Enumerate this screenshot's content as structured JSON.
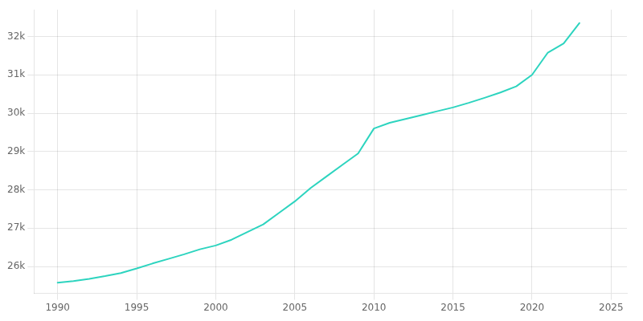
{
  "chart_data": {
    "type": "line",
    "x": [
      1990,
      1991,
      1992,
      1993,
      1994,
      1995,
      1996,
      1997,
      1998,
      1999,
      2000,
      2001,
      2002,
      2003,
      2004,
      2005,
      2006,
      2007,
      2008,
      2009,
      2010,
      2011,
      2012,
      2013,
      2014,
      2015,
      2016,
      2017,
      2018,
      2019,
      2020,
      2021,
      2022,
      2023
    ],
    "values": [
      25580,
      25620,
      25680,
      25750,
      25830,
      25950,
      26080,
      26200,
      26320,
      26450,
      26550,
      26700,
      26900,
      27100,
      27400,
      27700,
      28050,
      28350,
      28650,
      28950,
      29600,
      29750,
      29850,
      29950,
      30050,
      30150,
      30270,
      30400,
      30540,
      30700,
      31000,
      31580,
      31820,
      32350
    ],
    "color": "#2dd4bf",
    "xlim": [
      1988.5,
      2026
    ],
    "ylim": [
      25300,
      32700
    ],
    "xticks": [
      1990,
      1995,
      2000,
      2005,
      2010,
      2015,
      2020,
      2025
    ],
    "yticks": [
      {
        "value": 26000,
        "label": "26k"
      },
      {
        "value": 27000,
        "label": "27k"
      },
      {
        "value": 28000,
        "label": "28k"
      },
      {
        "value": 29000,
        "label": "29k"
      },
      {
        "value": 30000,
        "label": "30k"
      },
      {
        "value": 31000,
        "label": "31k"
      },
      {
        "value": 32000,
        "label": "32k"
      }
    ],
    "grid": true
  }
}
